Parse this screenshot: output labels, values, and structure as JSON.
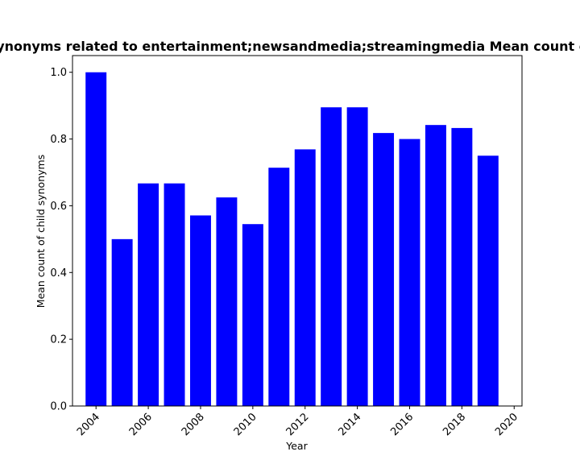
{
  "chart_data": {
    "type": "bar",
    "title": "Count of child synonyms related to entertainment;newsandmedia;streamingmedia Mean count of child synonyms",
    "xlabel": "Year",
    "ylabel": "Mean count of child synonyms",
    "x": [
      2004,
      2005,
      2006,
      2007,
      2008,
      2009,
      2010,
      2011,
      2012,
      2013,
      2014,
      2015,
      2016,
      2017,
      2018,
      2019
    ],
    "values": [
      1.0,
      0.5,
      0.667,
      0.667,
      0.571,
      0.625,
      0.545,
      0.714,
      0.769,
      0.895,
      0.895,
      0.818,
      0.8,
      0.842,
      0.833,
      0.75
    ],
    "xlim": [
      2003.1,
      2020.3
    ],
    "ylim": [
      0,
      1.05
    ],
    "xticks": [
      2004,
      2006,
      2008,
      2010,
      2012,
      2014,
      2016,
      2018,
      2020
    ],
    "yticks": [
      0.0,
      0.2,
      0.4,
      0.6,
      0.8,
      1.0
    ],
    "ytick_labels": [
      "0.0",
      "0.2",
      "0.4",
      "0.6",
      "0.8",
      "1.0"
    ],
    "bar_color": "#0000ff",
    "grid": false,
    "legend": "none"
  }
}
